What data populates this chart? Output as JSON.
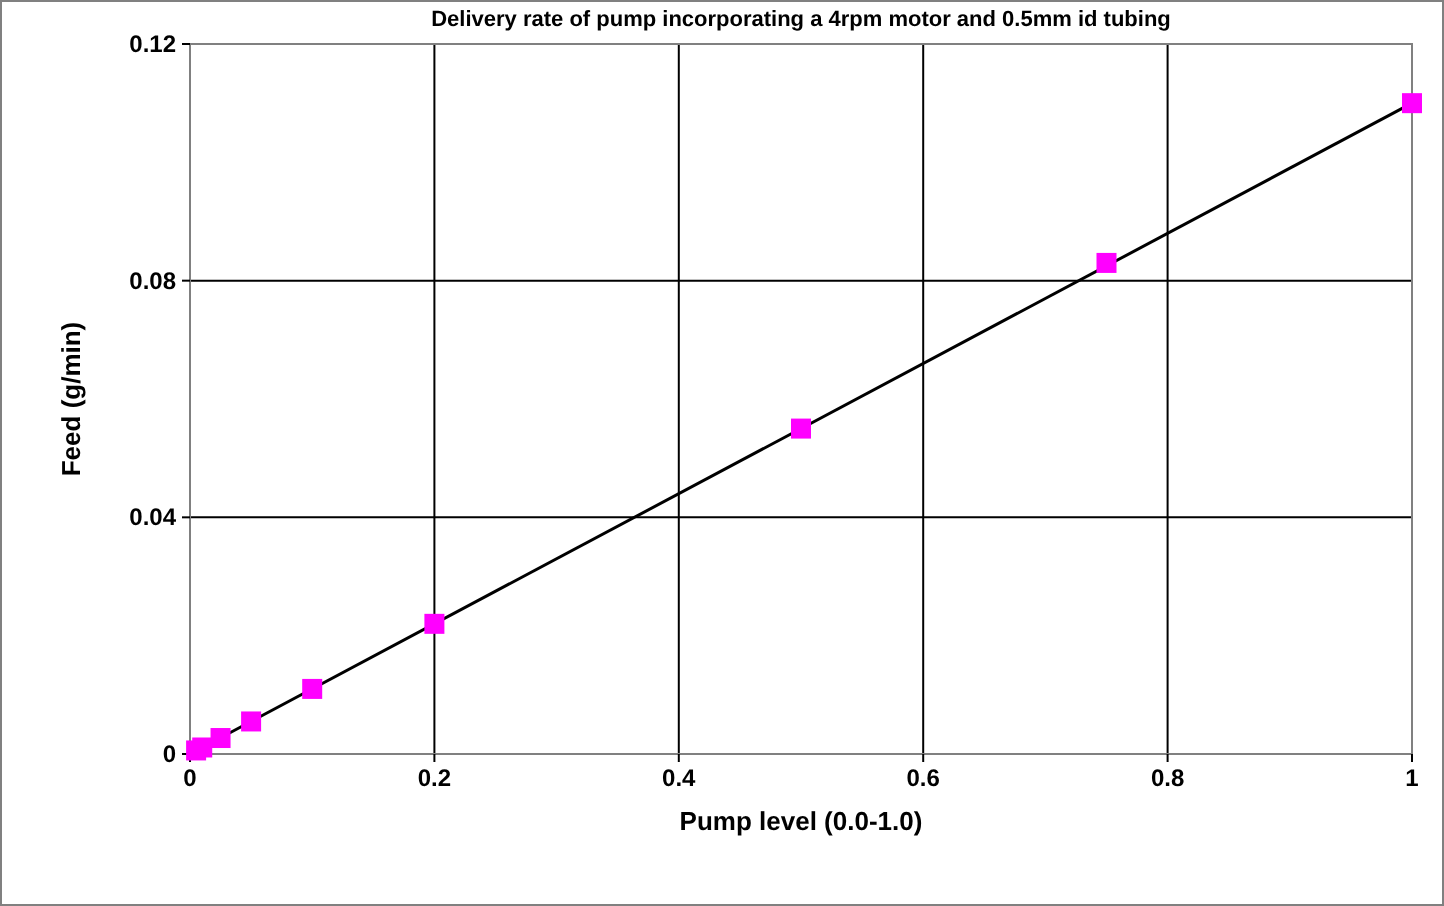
{
  "chart_data": {
    "type": "scatter",
    "title": "Delivery rate of pump incorporating a 4rpm motor and 0.5mm id tubing",
    "xlabel": "Pump level (0.0-1.0)",
    "ylabel": "Feed (g/min)",
    "xlim": [
      0,
      1
    ],
    "xticks": [
      0,
      0.2,
      0.4,
      0.6,
      0.8,
      1
    ],
    "ylim": [
      0,
      0.12
    ],
    "yticks": [
      0,
      0.04,
      0.08,
      0.12
    ],
    "grid": true,
    "series": [
      {
        "color": "#ff00ff",
        "marker": "square",
        "x": [
          0.005,
          0.01,
          0.025,
          0.05,
          0.1,
          0.2,
          0.5,
          0.75,
          1
        ],
        "values": [
          0.0006,
          0.0011,
          0.0027,
          0.0055,
          0.011,
          0.022,
          0.055,
          0.083,
          0.11
        ]
      },
      {
        "type": "line",
        "color": "#000000",
        "marker": "none",
        "line_style": "solid",
        "x": [
          0,
          1
        ],
        "values": [
          0,
          0.11
        ]
      }
    ]
  }
}
